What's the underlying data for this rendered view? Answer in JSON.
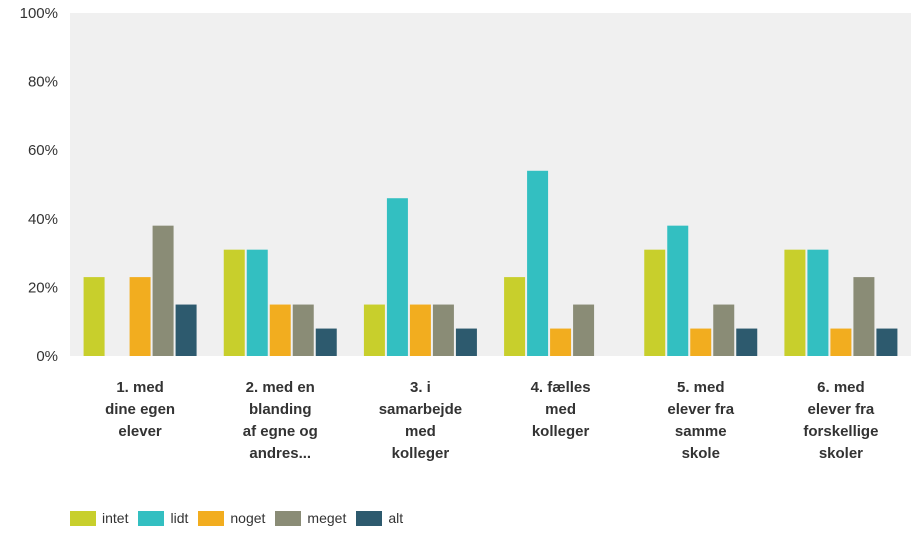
{
  "chart_data": {
    "type": "bar",
    "categories": [
      [
        "1. med",
        "dine egen",
        "elever"
      ],
      [
        "2. med en",
        "blanding",
        "af egne og",
        "andres..."
      ],
      [
        "3. i",
        "samarbejde",
        "med",
        "kolleger"
      ],
      [
        "4. fælles",
        "med",
        "kolleger"
      ],
      [
        "5. med",
        "elever fra",
        "samme",
        "skole"
      ],
      [
        "6. med",
        "elever fra",
        "forskellige",
        "skoler"
      ]
    ],
    "series": [
      {
        "name": "intet",
        "color": "#c8cf2c",
        "values": [
          23,
          31,
          15,
          23,
          31,
          31
        ]
      },
      {
        "name": "lidt",
        "color": "#33bfc1",
        "values": [
          0,
          31,
          46,
          54,
          38,
          31
        ]
      },
      {
        "name": "noget",
        "color": "#f2ad1f",
        "values": [
          23,
          15,
          15,
          8,
          8,
          8
        ]
      },
      {
        "name": "meget",
        "color": "#8a8c76",
        "values": [
          38,
          15,
          15,
          15,
          15,
          23
        ]
      },
      {
        "name": "alt",
        "color": "#2d5a6e",
        "values": [
          15,
          8,
          8,
          0,
          8,
          8
        ]
      }
    ],
    "yticks": [
      "0%",
      "20%",
      "40%",
      "60%",
      "80%",
      "100%"
    ],
    "ylim": [
      0,
      100
    ],
    "grid": false,
    "legend": "bottom-left",
    "plot_background": "#f0f0f0"
  }
}
